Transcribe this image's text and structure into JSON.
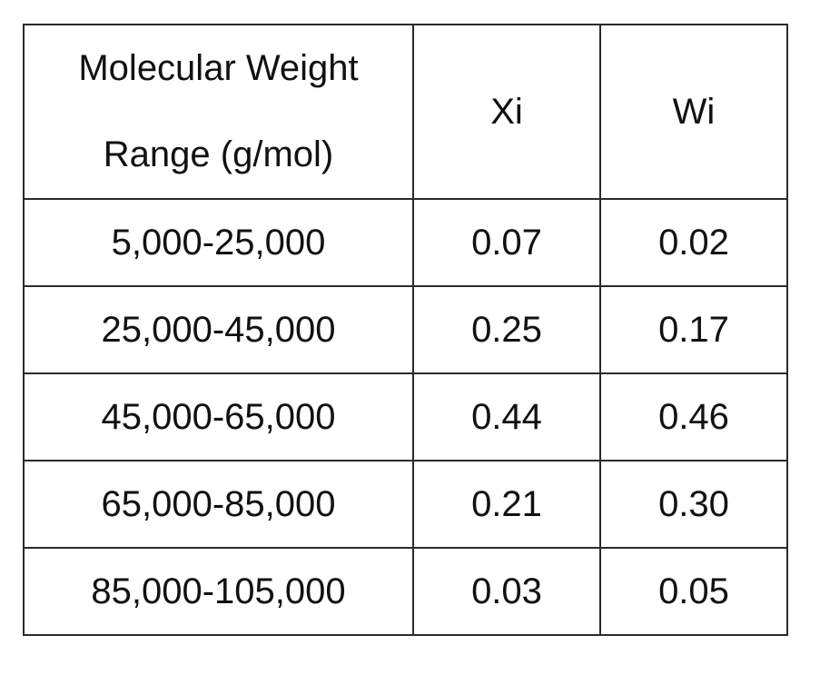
{
  "table": {
    "header": [
      "Molecular Weight Range (g/mol)",
      "Xi",
      "Wi"
    ],
    "rows": [
      [
        "5,000-25,000",
        "0.07",
        "0.02"
      ],
      [
        "25,000-45,000",
        "0.25",
        "0.17"
      ],
      [
        "45,000-65,000",
        "0.44",
        "0.46"
      ],
      [
        "65,000-85,000",
        "0.21",
        "0.30"
      ],
      [
        "85,000-105,000",
        "0.03",
        "0.05"
      ]
    ]
  }
}
